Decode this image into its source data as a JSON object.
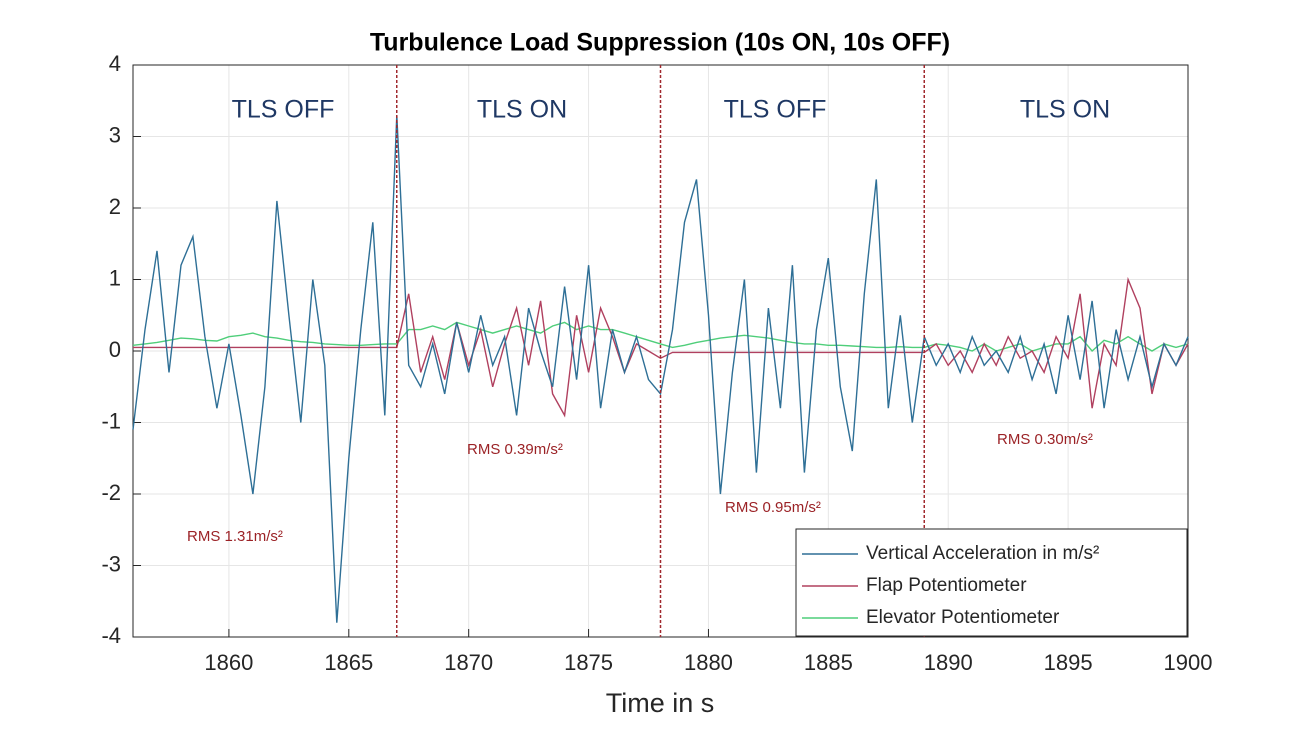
{
  "chart_data": {
    "type": "line",
    "title": "Turbulence Load Suppression (10s ON, 10s OFF)",
    "x_label": "Time in s",
    "x": [
      1856,
      1856.5,
      1857,
      1857.5,
      1858,
      1858.5,
      1859,
      1859.5,
      1860,
      1860.5,
      1861,
      1861.5,
      1862,
      1862.5,
      1863,
      1863.5,
      1864,
      1864.5,
      1865,
      1865.5,
      1866,
      1866.5,
      1867,
      1867.5,
      1868,
      1868.5,
      1869,
      1869.5,
      1870,
      1870.5,
      1871,
      1871.5,
      1872,
      1872.5,
      1873,
      1873.5,
      1874,
      1874.5,
      1875,
      1875.5,
      1876,
      1876.5,
      1877,
      1877.5,
      1878,
      1878.5,
      1879,
      1879.5,
      1880,
      1880.5,
      1881,
      1881.5,
      1882,
      1882.5,
      1883,
      1883.5,
      1884,
      1884.5,
      1885,
      1885.5,
      1886,
      1886.5,
      1887,
      1887.5,
      1888,
      1888.5,
      1889,
      1889.5,
      1890,
      1890.5,
      1891,
      1891.5,
      1892,
      1892.5,
      1893,
      1893.5,
      1894,
      1894.5,
      1895,
      1895.5,
      1896,
      1896.5,
      1897,
      1897.5,
      1898,
      1898.5,
      1899,
      1899.5,
      1900
    ],
    "series": [
      {
        "name": "Vertical Acceleration in m/s²",
        "color": "#2e6f96",
        "values": [
          -1.1,
          0.3,
          1.4,
          -0.3,
          1.2,
          1.6,
          0.2,
          -0.8,
          0.1,
          -0.9,
          -2.0,
          -0.5,
          2.1,
          0.5,
          -1.0,
          1.0,
          -0.2,
          -3.8,
          -1.5,
          0.3,
          1.8,
          -0.9,
          3.3,
          -0.2,
          -0.5,
          0.1,
          -0.6,
          0.4,
          -0.3,
          0.5,
          -0.2,
          0.2,
          -0.9,
          0.6,
          0.0,
          -0.5,
          0.9,
          -0.4,
          1.2,
          -0.8,
          0.3,
          -0.3,
          0.2,
          -0.4,
          -0.6,
          0.3,
          1.8,
          2.4,
          0.5,
          -2.0,
          -0.3,
          1.0,
          -1.7,
          0.6,
          -0.8,
          1.2,
          -1.7,
          0.3,
          1.3,
          -0.5,
          -1.4,
          0.8,
          2.4,
          -0.8,
          0.5,
          -1.0,
          0.2,
          -0.2,
          0.1,
          -0.3,
          0.2,
          -0.2,
          0.0,
          -0.3,
          0.2,
          -0.4,
          0.1,
          -0.6,
          0.5,
          -0.4,
          0.7,
          -0.8,
          0.3,
          -0.4,
          0.2,
          -0.5,
          0.1,
          -0.2,
          0.2
        ]
      },
      {
        "name": "Flap Potentiometer",
        "color": "#b0405f",
        "values": [
          0.05,
          0.05,
          0.05,
          0.05,
          0.05,
          0.05,
          0.05,
          0.05,
          0.05,
          0.05,
          0.05,
          0.05,
          0.05,
          0.05,
          0.05,
          0.05,
          0.05,
          0.05,
          0.05,
          0.05,
          0.05,
          0.05,
          0.05,
          0.8,
          -0.3,
          0.2,
          -0.4,
          0.4,
          -0.2,
          0.3,
          -0.5,
          0.1,
          0.6,
          -0.2,
          0.7,
          -0.6,
          -0.9,
          0.5,
          -0.3,
          0.6,
          0.2,
          -0.3,
          0.1,
          0.0,
          -0.1,
          -0.02,
          -0.02,
          -0.02,
          -0.02,
          -0.02,
          -0.02,
          -0.02,
          -0.02,
          -0.02,
          -0.02,
          -0.02,
          -0.02,
          -0.02,
          -0.02,
          -0.02,
          -0.02,
          -0.02,
          -0.02,
          -0.02,
          -0.02,
          -0.02,
          -0.02,
          0.1,
          -0.2,
          0.0,
          -0.3,
          0.1,
          -0.2,
          0.2,
          -0.1,
          0.0,
          -0.3,
          0.2,
          -0.1,
          0.8,
          -0.8,
          0.1,
          -0.2,
          1.0,
          0.6,
          -0.6,
          0.1,
          -0.2,
          0.1
        ]
      },
      {
        "name": "Elevator Potentiometer",
        "color": "#4fce7a",
        "values": [
          0.08,
          0.1,
          0.12,
          0.15,
          0.18,
          0.17,
          0.15,
          0.14,
          0.2,
          0.22,
          0.25,
          0.2,
          0.18,
          0.15,
          0.13,
          0.12,
          0.1,
          0.09,
          0.08,
          0.08,
          0.09,
          0.1,
          0.1,
          0.3,
          0.3,
          0.35,
          0.3,
          0.4,
          0.35,
          0.3,
          0.25,
          0.3,
          0.35,
          0.3,
          0.25,
          0.35,
          0.4,
          0.3,
          0.35,
          0.3,
          0.3,
          0.25,
          0.2,
          0.15,
          0.1,
          0.05,
          0.08,
          0.12,
          0.15,
          0.18,
          0.2,
          0.22,
          0.2,
          0.18,
          0.15,
          0.12,
          0.1,
          0.1,
          0.08,
          0.08,
          0.07,
          0.06,
          0.05,
          0.05,
          0.06,
          0.05,
          0.05,
          0.1,
          0.08,
          0.05,
          0.0,
          0.1,
          0.0,
          0.05,
          0.1,
          0.0,
          0.05,
          0.1,
          0.1,
          0.2,
          0.0,
          0.15,
          0.1,
          0.2,
          0.1,
          0.0,
          0.1,
          0.05,
          0.1
        ]
      }
    ],
    "xlim": [
      1856,
      1900
    ],
    "xticks": [
      1860,
      1865,
      1870,
      1875,
      1880,
      1885,
      1890,
      1895,
      1900
    ],
    "ylim": [
      -4,
      4
    ],
    "yticks": [
      -4,
      -3,
      -2,
      -1,
      0,
      1,
      2,
      3,
      4
    ],
    "grid": true,
    "vlines": [
      1867,
      1878,
      1889
    ],
    "vline_color": "#a0282d",
    "phase_labels": [
      "TLS OFF",
      "TLS ON",
      "TLS OFF",
      "TLS ON"
    ],
    "rms_labels": [
      "RMS 1.31m/s²",
      "RMS 0.39m/s²",
      "RMS 0.95m/s²",
      "RMS 0.30m/s²"
    ],
    "legend": "lower right"
  }
}
